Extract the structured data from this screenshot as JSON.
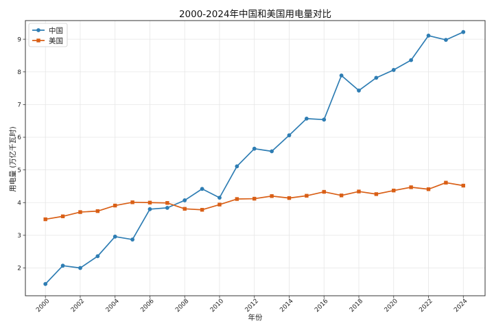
{
  "chart_data": {
    "type": "line",
    "title": "2000-2024年中国和美国用电量对比",
    "xlabel": "年份",
    "ylabel": "用电量 (万亿千瓦时)",
    "x": [
      2000,
      2001,
      2002,
      2003,
      2004,
      2005,
      2006,
      2007,
      2008,
      2009,
      2010,
      2011,
      2012,
      2013,
      2014,
      2015,
      2016,
      2017,
      2018,
      2019,
      2020,
      2021,
      2022,
      2023,
      2024
    ],
    "xticks": [
      "2000",
      "2002",
      "2004",
      "2006",
      "2008",
      "2010",
      "2012",
      "2014",
      "2016",
      "2018",
      "2020",
      "2022",
      "2024"
    ],
    "yticks": [
      "2",
      "3",
      "4",
      "5",
      "6",
      "7",
      "8",
      "9"
    ],
    "xlim": [
      1998.85,
      2025.25
    ],
    "ylim": [
      1.15,
      9.57
    ],
    "grid": true,
    "legend_position": "top-left",
    "series": [
      {
        "name": "中国",
        "color": "#2e7db3",
        "marker": "circle",
        "values": [
          1.51,
          2.07,
          2.0,
          2.36,
          2.96,
          2.87,
          3.8,
          3.84,
          4.07,
          4.42,
          4.15,
          5.11,
          5.65,
          5.57,
          6.06,
          6.57,
          6.54,
          7.89,
          7.43,
          7.82,
          8.06,
          8.36,
          9.11,
          8.98,
          9.22
        ]
      },
      {
        "name": "美国",
        "color": "#d95f16",
        "marker": "square",
        "values": [
          3.49,
          3.58,
          3.71,
          3.74,
          3.91,
          4.01,
          4.0,
          3.99,
          3.81,
          3.78,
          3.94,
          4.11,
          4.12,
          4.2,
          4.14,
          4.21,
          4.33,
          4.22,
          4.34,
          4.26,
          4.37,
          4.47,
          4.41,
          4.61,
          4.52
        ]
      }
    ]
  }
}
